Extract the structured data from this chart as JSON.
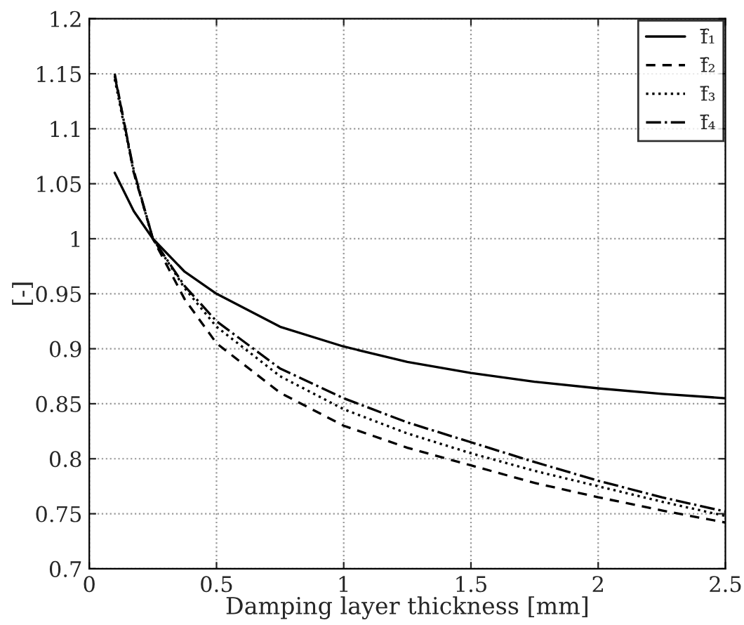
{
  "chart_data": {
    "type": "line",
    "xlabel": "Damping layer thickness [mm]",
    "ylabel": "[-]",
    "xlim": [
      0,
      2.5
    ],
    "xticks": [
      0,
      0.5,
      1,
      1.5,
      2,
      2.5
    ],
    "ylim": [
      0.7,
      1.2
    ],
    "yticks": [
      0.7,
      0.75,
      0.8,
      0.85,
      0.9,
      0.95,
      1,
      1.05,
      1.1,
      1.15,
      1.2
    ],
    "grid": true,
    "legend": "top right",
    "x": [
      0.1,
      0.175,
      0.25,
      0.375,
      0.5,
      0.75,
      1,
      1.25,
      1.5,
      1.75,
      2,
      2.25,
      2.5
    ],
    "series": [
      {
        "name": "f̄₁",
        "color": "#000000",
        "line_style": "solid",
        "values": [
          1.06,
          1.025,
          1.0,
          0.97,
          0.95,
          0.92,
          0.902,
          0.888,
          0.878,
          0.87,
          0.864,
          0.859,
          0.855
        ]
      },
      {
        "name": "f̄₂",
        "color": "#000000",
        "line_style": "dashed",
        "values": [
          1.15,
          1.06,
          1.0,
          0.945,
          0.905,
          0.86,
          0.83,
          0.81,
          0.794,
          0.778,
          0.765,
          0.753,
          0.742
        ]
      },
      {
        "name": "f̄₃",
        "color": "#000000",
        "line_style": "dotted",
        "values": [
          1.145,
          1.06,
          1.0,
          0.955,
          0.92,
          0.875,
          0.845,
          0.823,
          0.805,
          0.789,
          0.775,
          0.761,
          0.748
        ]
      },
      {
        "name": "f̄₄",
        "color": "#000000",
        "line_style": "dashdot",
        "values": [
          1.148,
          1.062,
          1.0,
          0.957,
          0.925,
          0.882,
          0.855,
          0.833,
          0.815,
          0.797,
          0.78,
          0.765,
          0.752
        ]
      }
    ]
  }
}
